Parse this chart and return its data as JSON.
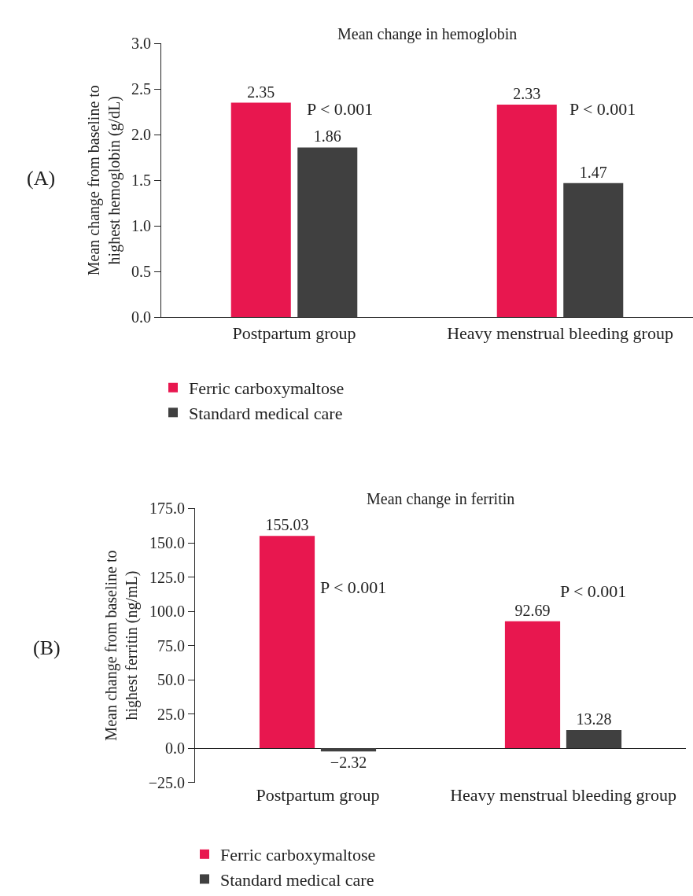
{
  "chart_data": [
    {
      "type": "bar",
      "title": "Mean change in hemoglobin",
      "ylabel": "Mean change from baseline to\nhighest hemoglobin (g/dL)",
      "categories": [
        "Postpartum group",
        "Heavy menstrual bleeding group"
      ],
      "series": [
        {
          "name": "Ferric carboxymaltose",
          "color": "#e8174f",
          "values": [
            2.35,
            2.33
          ],
          "value_labels": [
            "2.35",
            "2.33"
          ]
        },
        {
          "name": "Standard medical care",
          "color": "#404040",
          "values": [
            1.86,
            1.47
          ],
          "value_labels": [
            "1.86",
            "1.47"
          ]
        }
      ],
      "ylim": [
        0,
        3
      ],
      "yticks": [
        {
          "value": 0,
          "label": "0.0"
        },
        {
          "value": 0.5,
          "label": "0.5"
        },
        {
          "value": 1,
          "label": "1.0"
        },
        {
          "value": 1.5,
          "label": "1.5"
        },
        {
          "value": 2,
          "label": "2.0"
        },
        {
          "value": 2.5,
          "label": "2.5"
        },
        {
          "value": 3,
          "label": "3.0"
        }
      ],
      "annotations": [
        "(A)",
        "P < 0.001",
        "P < 0.001"
      ],
      "legend": "bottom left"
    },
    {
      "type": "bar",
      "title": "Mean change in ferritin",
      "ylabel": "Mean change from baseline to\nhighest ferritin (ng/mL)",
      "categories": [
        "Postpartum group",
        "Heavy menstrual bleeding group"
      ],
      "series": [
        {
          "name": "Ferric carboxymaltose",
          "color": "#e8174f",
          "values": [
            155.03,
            92.69
          ],
          "value_labels": [
            "155.03",
            "92.69"
          ]
        },
        {
          "name": "Standard medical care",
          "color": "#404040",
          "values": [
            -2.32,
            13.28
          ],
          "value_labels": [
            "−2.32",
            "13.28"
          ]
        }
      ],
      "ylim": [
        -25,
        175
      ],
      "yticks": [
        {
          "value": -25,
          "label": "−25.0"
        },
        {
          "value": 0,
          "label": "0.0"
        },
        {
          "value": 25,
          "label": "25.0"
        },
        {
          "value": 50,
          "label": "50.0"
        },
        {
          "value": 75,
          "label": "75.0"
        },
        {
          "value": 100,
          "label": "100.0"
        },
        {
          "value": 125,
          "label": "125.0"
        },
        {
          "value": 150,
          "label": "150.0"
        },
        {
          "value": 175,
          "label": "175.0"
        }
      ],
      "annotations": [
        "(B)",
        "P < 0.001",
        "P < 0.001"
      ],
      "legend": "bottom left"
    }
  ]
}
